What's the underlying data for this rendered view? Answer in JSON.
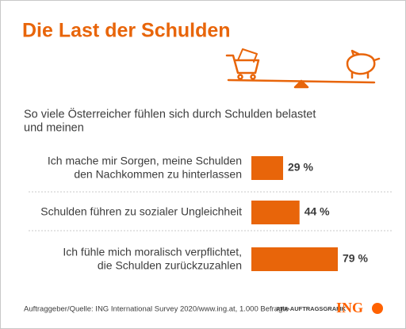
{
  "chart_data": {
    "type": "bar",
    "orientation": "horizontal",
    "title": "Die Last der Schulden",
    "subtitle": "So viele Österreicher fühlen sich durch Schulden belastet\nund meinen",
    "categories": [
      "Ich mache mir Sorgen, meine Schulden\nden Nachkommen zu hinterlassen",
      "Schulden führen zu sozialer Ungleichheit",
      "Ich fühle mich moralisch verpflichtet,\ndie Schulden zurückzuzahlen"
    ],
    "values": [
      29,
      44,
      79
    ],
    "value_labels": [
      "29 %",
      "44 %",
      "79 %"
    ],
    "color": "#e8650a",
    "source": "Auftraggeber/Quelle: ING International Survey 2020/www.ing.at, 1.000 Befragte",
    "credit": "APA-AUFTRAGSGRAFIK",
    "logo": "ING"
  }
}
